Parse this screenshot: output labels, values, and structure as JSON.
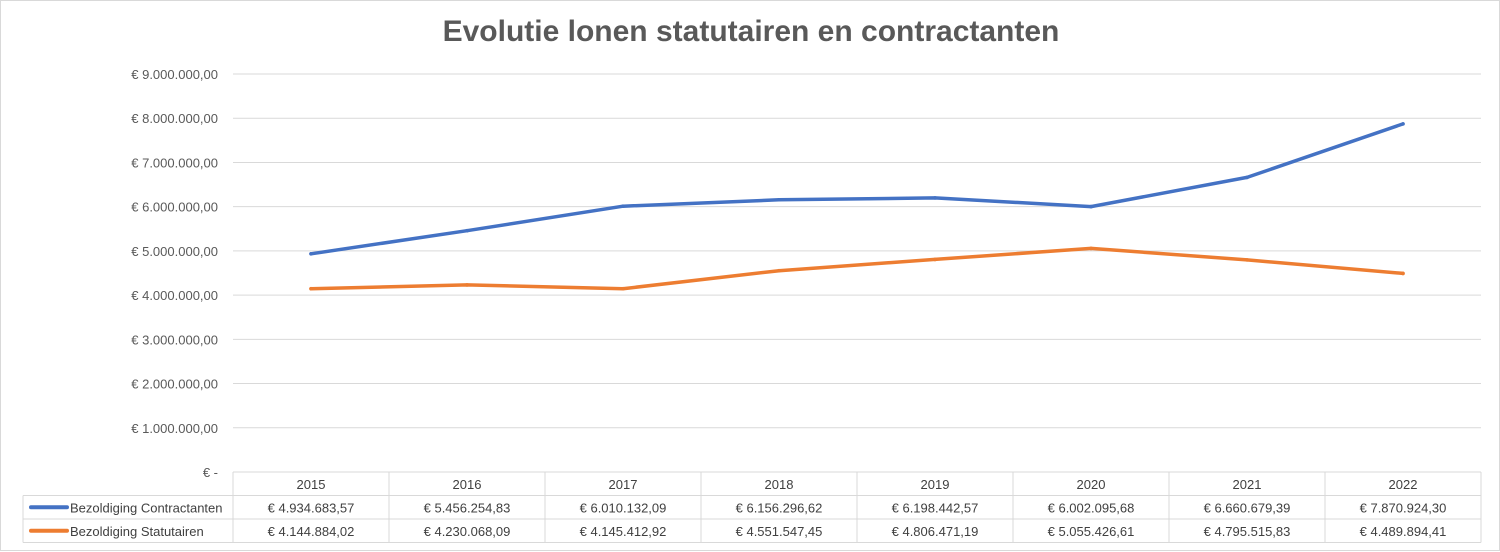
{
  "chart_data": {
    "type": "line",
    "title": "Evolutie lonen statutairen en contractanten",
    "categories": [
      "2015",
      "2016",
      "2017",
      "2018",
      "2019",
      "2020",
      "2021",
      "2022"
    ],
    "ylim": [
      0,
      9000000
    ],
    "y_ticks": [
      0,
      1000000,
      2000000,
      3000000,
      4000000,
      5000000,
      6000000,
      7000000,
      8000000,
      9000000
    ],
    "y_tick_labels": [
      "€ -",
      "€ 1.000.000,00",
      "€ 2.000.000,00",
      "€ 3.000.000,00",
      "€ 4.000.000,00",
      "€ 5.000.000,00",
      "€ 6.000.000,00",
      "€ 7.000.000,00",
      "€ 8.000.000,00",
      "€ 9.000.000,00"
    ],
    "grid": true,
    "legend": "data-table",
    "series": [
      {
        "name": "Bezoldiging Contractanten",
        "color": "#4472c4",
        "values": [
          4934683.57,
          5456254.83,
          6010132.09,
          6156296.62,
          6198442.57,
          6002095.68,
          6660679.39,
          7870924.3
        ],
        "labels": [
          "€ 4.934.683,57",
          "€ 5.456.254,83",
          "€ 6.010.132,09",
          "€ 6.156.296,62",
          "€ 6.198.442,57",
          "€ 6.002.095,68",
          "€ 6.660.679,39",
          "€ 7.870.924,30"
        ]
      },
      {
        "name": "Bezoldiging Statutairen",
        "color": "#ed7d31",
        "values": [
          4144884.02,
          4230068.09,
          4145412.92,
          4551547.45,
          4806471.19,
          5055426.61,
          4795515.83,
          4489894.41
        ],
        "labels": [
          "€ 4.144.884,02",
          "€ 4.230.068,09",
          "€ 4.145.412,92",
          "€ 4.551.547,45",
          "€ 4.806.471,19",
          "€ 5.055.426,61",
          "€ 4.795.515,83",
          "€ 4.489.894,41"
        ]
      }
    ]
  }
}
